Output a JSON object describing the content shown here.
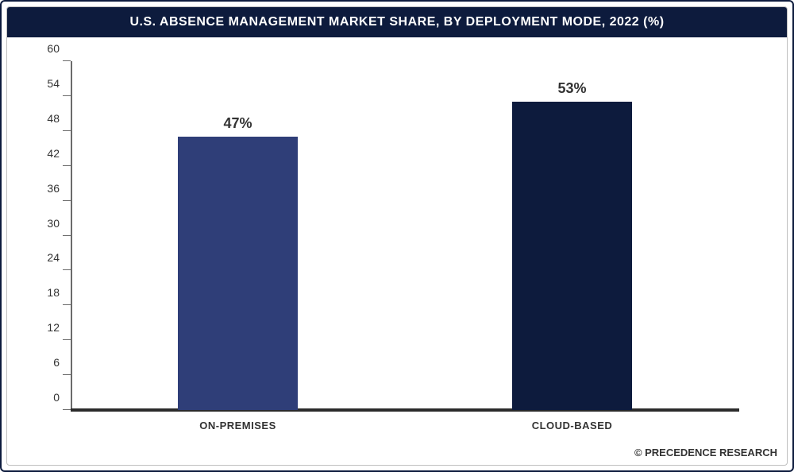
{
  "chart": {
    "type": "bar",
    "title": "U.S. ABSENCE MANAGEMENT MARKET SHARE, BY DEPLOYMENT MODE, 2022 (%)",
    "title_fontsize": 16,
    "title_color": "#ffffff",
    "title_bg": "#0d1b3d",
    "categories": [
      "ON-PREMISES",
      "CLOUD-BASED"
    ],
    "values": [
      47,
      53
    ],
    "value_labels": [
      "47%",
      "53%"
    ],
    "bar_colors": [
      "#2f3e78",
      "#0d1b3d"
    ],
    "bar_width_pct": 60,
    "ylim": [
      0,
      60
    ],
    "yticks": [
      0,
      6,
      12,
      18,
      24,
      30,
      36,
      42,
      48,
      54,
      60
    ],
    "ytick_fontsize": 14,
    "xlabel_fontsize": 13,
    "label_color": "#333333",
    "value_label_fontsize": 18,
    "axis_color": "#6b6b6b",
    "baseline_color": "#2b2b2b",
    "background_color": "#ffffff",
    "frame_border_color": "#0d1b3d",
    "inner_border_color": "#bfbfbf"
  },
  "footer": {
    "text": "© PRECEDENCE RESEARCH",
    "fontsize": 13,
    "color": "#333333"
  }
}
